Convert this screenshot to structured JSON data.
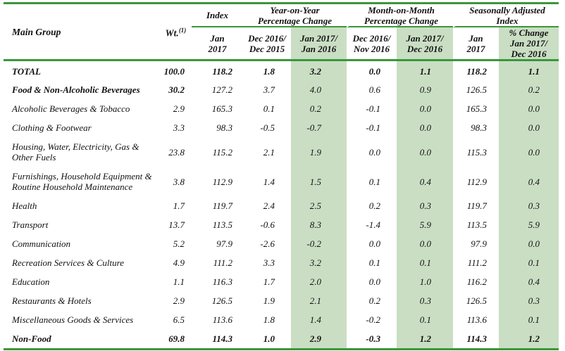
{
  "colors": {
    "accent_green_line": "#3a973a",
    "highlight_green": "#cadec4",
    "text": "#111111",
    "background": "#ffffff"
  },
  "table": {
    "header": {
      "main_group_label": "Main Group",
      "weight_label": "Wt.",
      "weight_superscript": "(1)",
      "groups": [
        {
          "label": "Index",
          "span": 1
        },
        {
          "label": "Year-on-Year\nPercentage Change",
          "span": 2
        },
        {
          "label": "Month-on-Month\nPercentage Change",
          "span": 2
        },
        {
          "label": "Seasonally Adjusted\nIndex",
          "span": 2
        }
      ],
      "subheaders": [
        {
          "label": "Jan\n2017",
          "highlight": false
        },
        {
          "label": "Dec 2016/\nDec 2015",
          "highlight": false
        },
        {
          "label": "Jan 2017/\nJan 2016",
          "highlight": true
        },
        {
          "label": "Dec 2016/\nNov 2016",
          "highlight": false
        },
        {
          "label": "Jan 2017/\nDec 2016",
          "highlight": true
        },
        {
          "label": "Jan\n2017",
          "highlight": false
        },
        {
          "label": "% Change\nJan 2017/\nDec 2016",
          "highlight": true
        }
      ]
    },
    "columns": [
      "weight",
      "index_jan_2017",
      "yoy_dec2016_dec2015",
      "yoy_jan2017_jan2016",
      "mom_dec2016_nov2016",
      "mom_jan2017_dec2016",
      "sa_index_jan_2017",
      "sa_pct_change_jan2017_dec2016"
    ],
    "highlight_column_indexes": [
      3,
      5,
      7
    ],
    "rows": [
      {
        "name": "TOTAL",
        "style": "bold",
        "values": [
          "100.0",
          "118.2",
          "1.8",
          "3.2",
          "0.0",
          "1.1",
          "118.2",
          "1.1"
        ]
      },
      {
        "name": "Food & Non-Alcoholic Beverages",
        "style": "bold-label",
        "values": [
          "30.2",
          "127.2",
          "3.7",
          "4.0",
          "0.6",
          "0.9",
          "126.5",
          "0.2"
        ]
      },
      {
        "name": "Alcoholic Beverages & Tobacco",
        "style": "normal",
        "values": [
          "2.9",
          "165.3",
          "0.1",
          "0.2",
          "-0.1",
          "0.0",
          "165.3",
          "0.0"
        ]
      },
      {
        "name": "Clothing & Footwear",
        "style": "normal",
        "values": [
          "3.3",
          "98.3",
          "-0.5",
          "-0.7",
          "-0.1",
          "0.0",
          "98.3",
          "0.0"
        ]
      },
      {
        "name": "Housing, Water, Electricity, Gas & Other Fuels",
        "style": "normal",
        "values": [
          "23.8",
          "115.2",
          "2.1",
          "1.9",
          "0.0",
          "0.0",
          "115.3",
          "0.0"
        ]
      },
      {
        "name": "Furnishings, Household Equipment & Routine Household Maintenance",
        "style": "normal",
        "values": [
          "3.8",
          "112.9",
          "1.4",
          "1.5",
          "0.1",
          "0.4",
          "112.9",
          "0.4"
        ]
      },
      {
        "name": "Health",
        "style": "normal",
        "values": [
          "1.7",
          "119.7",
          "2.4",
          "2.5",
          "0.2",
          "0.3",
          "119.7",
          "0.3"
        ]
      },
      {
        "name": "Transport",
        "style": "normal",
        "values": [
          "13.7",
          "113.5",
          "-0.6",
          "8.3",
          "-1.4",
          "5.9",
          "113.5",
          "5.9"
        ]
      },
      {
        "name": "Communication",
        "style": "normal",
        "values": [
          "5.2",
          "97.9",
          "-2.6",
          "-0.2",
          "0.0",
          "0.0",
          "97.9",
          "0.0"
        ]
      },
      {
        "name": "Recreation Services & Culture",
        "style": "normal",
        "values": [
          "4.9",
          "111.2",
          "3.3",
          "3.2",
          "0.1",
          "0.1",
          "111.2",
          "0.1"
        ]
      },
      {
        "name": "Education",
        "style": "normal",
        "values": [
          "1.1",
          "116.3",
          "1.7",
          "2.0",
          "0.0",
          "1.0",
          "116.2",
          "0.4"
        ]
      },
      {
        "name": "Restaurants & Hotels",
        "style": "normal",
        "values": [
          "2.9",
          "126.5",
          "1.9",
          "2.1",
          "0.2",
          "0.3",
          "126.5",
          "0.3"
        ]
      },
      {
        "name": "Miscellaneous Goods & Services",
        "style": "normal",
        "values": [
          "6.5",
          "113.6",
          "1.8",
          "1.4",
          "-0.2",
          "0.1",
          "113.6",
          "0.1"
        ]
      },
      {
        "name": "Non-Food",
        "style": "bold",
        "values": [
          "69.8",
          "114.3",
          "1.0",
          "2.9",
          "-0.3",
          "1.2",
          "114.3",
          "1.2"
        ]
      }
    ]
  }
}
